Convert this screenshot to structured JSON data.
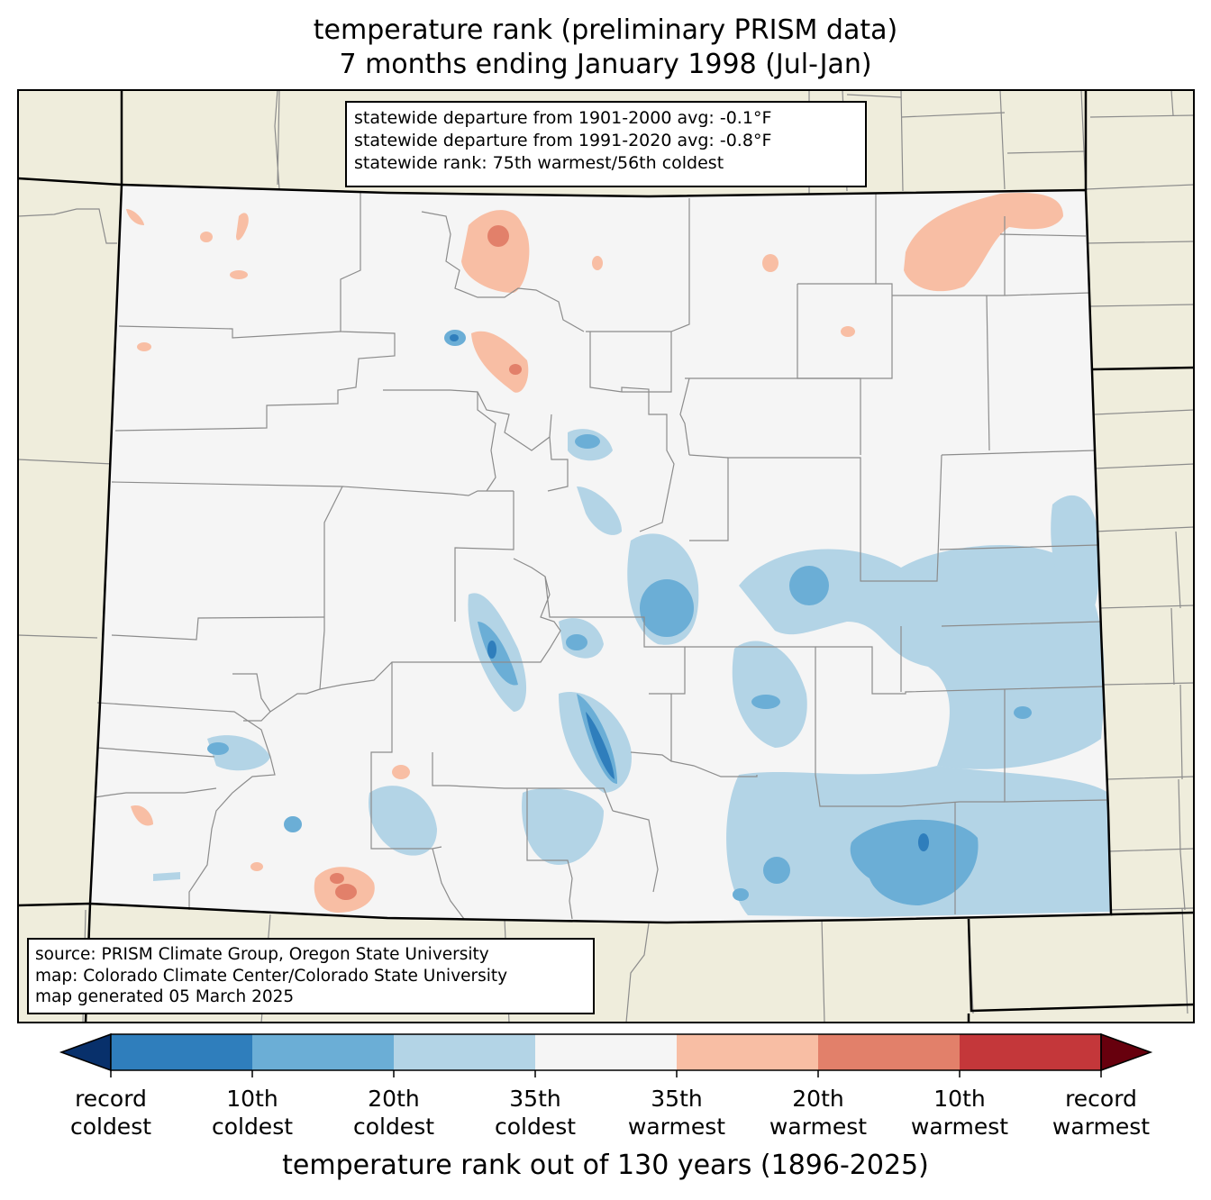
{
  "title": {
    "line1": "temperature rank (preliminary PRISM data)",
    "line2": "7 months ending January 1998 (Jul-Jan)"
  },
  "stats": {
    "line1": "statewide departure from 1901-2000 avg: -0.1°F",
    "line2": "statewide departure from 1991-2020 avg: -0.8°F",
    "line3": "statewide rank: 75th warmest/56th coldest"
  },
  "source": {
    "line1": "source: PRISM Climate Group, Oregon State University",
    "line2": "map: Colorado Climate Center/Colorado State University",
    "line3": "map generated 05 March 2025"
  },
  "colorbar": {
    "title": "temperature rank out of 130 years (1896-2025)",
    "ticks": [
      {
        "l1": "record",
        "l2": "coldest"
      },
      {
        "l1": "10th",
        "l2": "coldest"
      },
      {
        "l1": "20th",
        "l2": "coldest"
      },
      {
        "l1": "35th",
        "l2": "coldest"
      },
      {
        "l1": "35th",
        "l2": "warmest"
      },
      {
        "l1": "20th",
        "l2": "warmest"
      },
      {
        "l1": "10th",
        "l2": "warmest"
      },
      {
        "l1": "record",
        "l2": "warmest"
      }
    ],
    "colors": {
      "under": "#08306b",
      "c1": "#2f7ebc",
      "c2": "#6baed6",
      "c3": "#b3d4e6",
      "c4": "#f5f5f5",
      "c5": "#f8bea4",
      "c6": "#e2806a",
      "c7": "#c4373a",
      "over": "#67000d"
    }
  },
  "map_colors": {
    "land_outside": "#efeddc",
    "state_fill": "#f5f5f5",
    "county_lines": "#8c8c8c"
  }
}
